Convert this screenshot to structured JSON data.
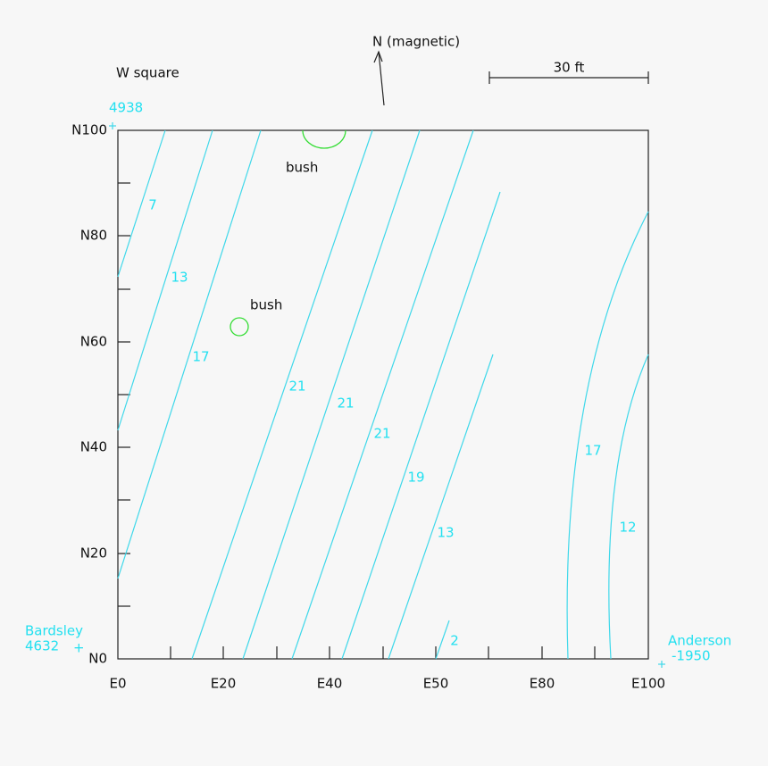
{
  "header": {
    "title": "W square",
    "north": "N (magnetic)",
    "scale": "30 ft"
  },
  "y_labels": [
    "N100",
    "N80",
    "N60",
    "N40",
    "N20",
    "N0"
  ],
  "x_labels": [
    "E0",
    "E20",
    "E40",
    "E50",
    "E80",
    "E100"
  ],
  "stations": [
    {
      "name": "4938"
    },
    {
      "name": "Bardsley",
      "value": "4632"
    },
    {
      "name": "Anderson",
      "value": "-1950"
    }
  ],
  "features": [
    "bush",
    "bush"
  ],
  "contour_labels": [
    "7",
    "13",
    "17",
    "21",
    "21",
    "21",
    "19",
    "13",
    "2",
    "17",
    "12"
  ]
}
